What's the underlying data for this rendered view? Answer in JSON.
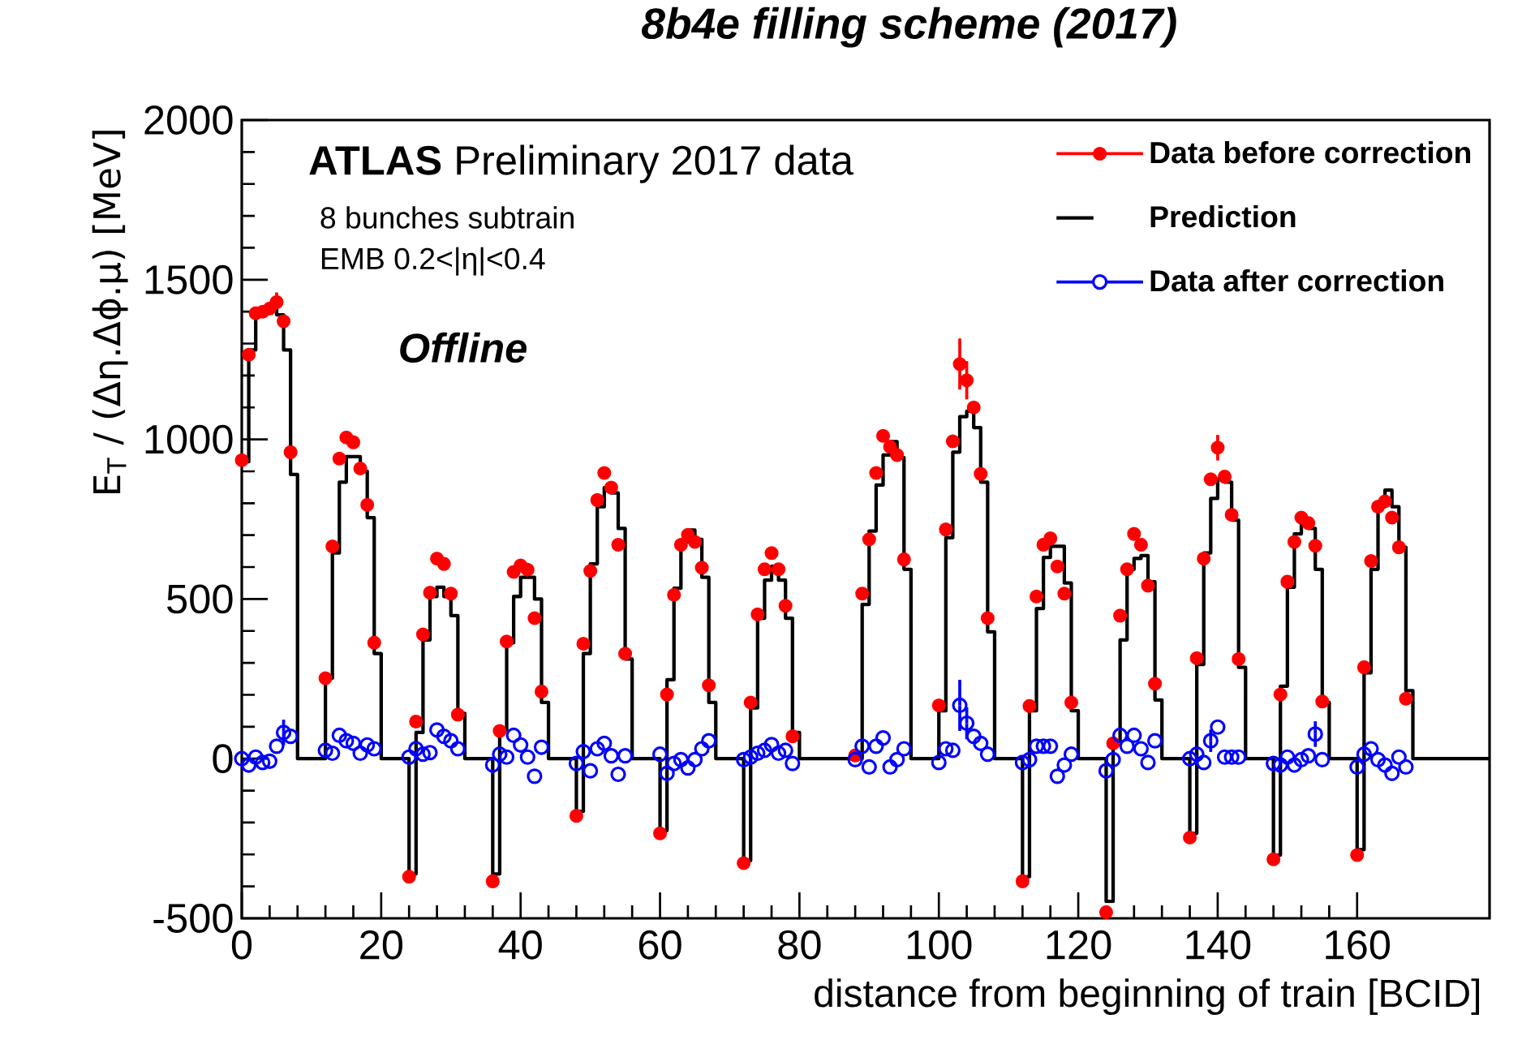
{
  "chart_data": {
    "type": "scatter",
    "title": "8b4e filling scheme (2017)",
    "xlabel": "distance from beginning of train [BCID]",
    "ylabel": "E$_{T}$ / (Δη.Δϕ.μ) [MeV]",
    "annotations": [
      "**ATLAS** Preliminary 2017 data",
      "8 bunches subtrain",
      "EMB 0.2<|η|<0.4",
      "Offline"
    ],
    "xlim": [
      0,
      179
    ],
    "xticks": [
      0,
      20,
      40,
      60,
      80,
      100,
      120,
      140,
      160
    ],
    "ylim": [
      -500,
      2000
    ],
    "yticks": [
      -500,
      0,
      500,
      1000,
      1500,
      2000
    ],
    "legend": "top right",
    "x": [
      0,
      1,
      2,
      3,
      4,
      5,
      6,
      7,
      12,
      13,
      14,
      15,
      16,
      17,
      18,
      19,
      24,
      25,
      26,
      27,
      28,
      29,
      30,
      31,
      36,
      37,
      38,
      39,
      40,
      41,
      42,
      43,
      48,
      49,
      50,
      51,
      52,
      53,
      54,
      55,
      60,
      61,
      62,
      63,
      64,
      65,
      66,
      67,
      72,
      73,
      74,
      75,
      76,
      77,
      78,
      79,
      88,
      89,
      90,
      91,
      92,
      93,
      94,
      95,
      100,
      101,
      102,
      103,
      104,
      105,
      106,
      107,
      112,
      113,
      114,
      115,
      116,
      117,
      118,
      119,
      124,
      125,
      126,
      127,
      128,
      129,
      130,
      131,
      136,
      137,
      138,
      139,
      140,
      141,
      142,
      143,
      148,
      149,
      150,
      151,
      152,
      153,
      154,
      155,
      160,
      161,
      162,
      163,
      164,
      165,
      166,
      167
    ],
    "series": [
      {
        "name": "Data before correction",
        "color": "#ff0000",
        "marker": "circle",
        "values": [
          935,
          1265,
          1395,
          1400,
          1410,
          1430,
          1370,
          960,
          252,
          665,
          940,
          1006,
          991,
          909,
          795,
          363,
          -370,
          116,
          389,
          520,
          627,
          610,
          517,
          138,
          -384,
          87,
          367,
          585,
          605,
          592,
          440,
          210,
          -179,
          360,
          588,
          810,
          895,
          849,
          670,
          329,
          -234,
          201,
          513,
          670,
          701,
          679,
          598,
          230,
          -327,
          176,
          452,
          593,
          644,
          593,
          479,
          70,
          10,
          517,
          687,
          895,
          1011,
          977,
          951,
          624,
          167,
          718,
          994,
          1236,
          1185,
          1100,
          892,
          440,
          -384,
          165,
          508,
          670,
          690,
          602,
          517,
          176,
          -481,
          48,
          448,
          593,
          704,
          670,
          542,
          235,
          -247,
          315,
          627,
          875,
          974,
          883,
          764,
          312,
          -315,
          201,
          554,
          679,
          755,
          738,
          667,
          179,
          -302,
          286,
          619,
          789,
          806,
          755,
          662,
          188
        ],
        "errors": [
          null,
          null,
          null,
          null,
          null,
          30,
          null,
          null,
          null,
          null,
          null,
          null,
          null,
          null,
          null,
          null,
          null,
          null,
          null,
          null,
          null,
          null,
          null,
          null,
          null,
          null,
          null,
          null,
          null,
          null,
          null,
          null,
          null,
          null,
          null,
          null,
          null,
          null,
          null,
          null,
          null,
          null,
          null,
          null,
          null,
          null,
          null,
          null,
          null,
          null,
          null,
          null,
          null,
          null,
          null,
          null,
          null,
          null,
          null,
          null,
          null,
          null,
          null,
          null,
          null,
          null,
          null,
          80,
          60,
          null,
          null,
          null,
          null,
          null,
          null,
          null,
          null,
          null,
          null,
          null,
          null,
          null,
          null,
          null,
          null,
          null,
          null,
          null,
          null,
          null,
          null,
          null,
          40,
          null,
          null,
          null,
          null,
          null,
          null,
          null,
          null,
          null,
          null,
          null,
          null,
          null,
          null,
          null,
          null,
          null,
          null,
          null
        ]
      },
      {
        "name": "Prediction",
        "type": "step",
        "color": "#000000",
        "marker": "none",
        "x": [
          0,
          1,
          2,
          3,
          4,
          5,
          6,
          7,
          8,
          9,
          10,
          11,
          12,
          13,
          14,
          15,
          16,
          17,
          18,
          19,
          20,
          21,
          22,
          23,
          24,
          25,
          26,
          27,
          28,
          29,
          30,
          31,
          32,
          33,
          34,
          35,
          36,
          37,
          38,
          39,
          40,
          41,
          42,
          43,
          44,
          45,
          46,
          47,
          48,
          49,
          50,
          51,
          52,
          53,
          54,
          55,
          56,
          57,
          58,
          59,
          60,
          61,
          62,
          63,
          64,
          65,
          66,
          67,
          68,
          69,
          70,
          71,
          72,
          73,
          74,
          75,
          76,
          77,
          78,
          79,
          80,
          81,
          82,
          83,
          84,
          85,
          86,
          87,
          88,
          89,
          90,
          91,
          92,
          93,
          94,
          95,
          96,
          97,
          98,
          99,
          100,
          101,
          102,
          103,
          104,
          105,
          106,
          107,
          108,
          109,
          110,
          111,
          112,
          113,
          114,
          115,
          116,
          117,
          118,
          119,
          120,
          121,
          122,
          123,
          124,
          125,
          126,
          127,
          128,
          129,
          130,
          131,
          132,
          133,
          134,
          135,
          136,
          137,
          138,
          139,
          140,
          141,
          142,
          143,
          144,
          145,
          146,
          147,
          148,
          149,
          150,
          151,
          152,
          153,
          154,
          155,
          156,
          157,
          158,
          159,
          160,
          161,
          162,
          163,
          164,
          165,
          166,
          167,
          168,
          169,
          170,
          171,
          172,
          173,
          174,
          175,
          176,
          177,
          178,
          179
        ],
        "values": [
          930,
          1280,
          1400,
          1405,
          1410,
          1390,
          1280,
          890,
          0,
          0,
          0,
          0,
          252,
          644,
          866,
          946,
          946,
          900,
          755,
          329,
          0,
          0,
          0,
          0,
          -361,
          82,
          372,
          508,
          537,
          508,
          448,
          142,
          0,
          0,
          0,
          0,
          -361,
          90,
          363,
          508,
          568,
          568,
          500,
          176,
          0,
          0,
          0,
          0,
          -165,
          329,
          610,
          789,
          849,
          832,
          721,
          312,
          0,
          0,
          0,
          0,
          -225,
          247,
          534,
          679,
          716,
          687,
          568,
          176,
          0,
          0,
          0,
          0,
          -319,
          159,
          440,
          559,
          602,
          559,
          440,
          82,
          0,
          0,
          0,
          0,
          0,
          0,
          0,
          0,
          0,
          483,
          713,
          857,
          951,
          993,
          943,
          593,
          0,
          0,
          0,
          0,
          150,
          692,
          960,
          1071,
          1088,
          1037,
          866,
          397,
          0,
          0,
          0,
          0,
          -370,
          150,
          470,
          630,
          665,
          665,
          550,
          150,
          0,
          0,
          0,
          0,
          -447,
          56,
          372,
          593,
          627,
          636,
          554,
          184,
          0,
          0,
          0,
          0,
          -234,
          295,
          644,
          815,
          875,
          866,
          747,
          286,
          0,
          0,
          0,
          0,
          -302,
          227,
          537,
          704,
          742,
          721,
          593,
          176,
          0,
          0,
          0,
          0,
          -285,
          269,
          593,
          789,
          841,
          789,
          662,
          213,
          0,
          0,
          0,
          0,
          0,
          0,
          0,
          0,
          0,
          0,
          0,
          0
        ]
      },
      {
        "name": "Data after correction",
        "color": "#0000ff",
        "marker": "circle",
        "values": [
          0,
          -20,
          5,
          -12,
          -8,
          39,
          82,
          70,
          26,
          17,
          73,
          56,
          48,
          17,
          43,
          31,
          5,
          31,
          14,
          19,
          90,
          70,
          56,
          31,
          -20,
          14,
          5,
          73,
          43,
          5,
          -55,
          36,
          -15,
          22,
          -38,
          31,
          48,
          9,
          -49,
          9,
          14,
          -46,
          -15,
          -3,
          -29,
          -3,
          31,
          56,
          -3,
          5,
          17,
          26,
          44,
          17,
          26,
          -15,
          -3,
          39,
          -26,
          39,
          65,
          -26,
          -3,
          31,
          -12,
          31,
          26,
          167,
          111,
          70,
          48,
          14,
          -12,
          -3,
          39,
          39,
          39,
          -55,
          -20,
          14,
          -38,
          -3,
          73,
          39,
          73,
          31,
          -12,
          56,
          0,
          14,
          -12,
          56,
          99,
          5,
          5,
          5,
          -15,
          -20,
          5,
          -20,
          -3,
          9,
          77,
          -3,
          -26,
          14,
          31,
          -3,
          -20,
          -46,
          5,
          -26
        ],
        "errors": [
          null,
          null,
          null,
          null,
          null,
          null,
          40,
          null,
          null,
          null,
          null,
          null,
          null,
          null,
          null,
          null,
          null,
          null,
          null,
          null,
          null,
          null,
          null,
          null,
          null,
          null,
          null,
          null,
          null,
          null,
          null,
          null,
          null,
          null,
          null,
          null,
          null,
          null,
          null,
          null,
          null,
          null,
          null,
          null,
          null,
          null,
          null,
          null,
          null,
          null,
          null,
          null,
          null,
          null,
          null,
          null,
          null,
          null,
          null,
          null,
          null,
          null,
          null,
          null,
          null,
          null,
          null,
          80,
          50,
          null,
          null,
          null,
          null,
          null,
          null,
          null,
          null,
          null,
          null,
          null,
          null,
          null,
          null,
          null,
          null,
          null,
          null,
          null,
          null,
          null,
          null,
          35,
          null,
          null,
          null,
          null,
          null,
          null,
          null,
          null,
          null,
          null,
          40,
          null,
          null,
          null,
          null,
          null,
          null,
          null,
          null,
          null
        ]
      }
    ]
  }
}
